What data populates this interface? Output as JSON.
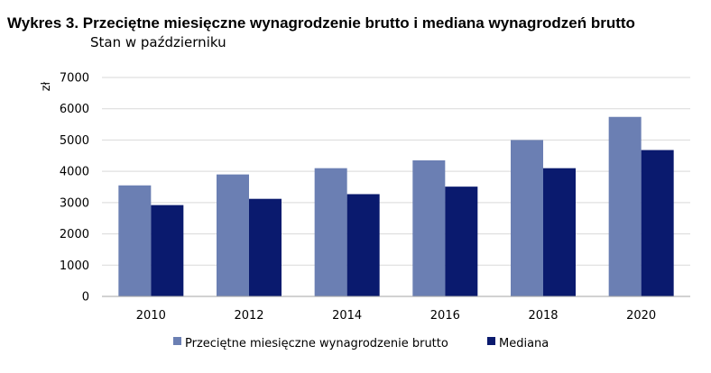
{
  "chart_data": {
    "type": "bar",
    "title": "Wykres 3. Przeciętne miesięczne wynagrodzenie brutto i mediana wynagrodzeń brutto",
    "subtitle": "Stan w październiku",
    "ylabel": "zł",
    "xlabel": "",
    "categories": [
      "2010",
      "2012",
      "2014",
      "2016",
      "2018",
      "2020"
    ],
    "ylim": [
      0,
      7000
    ],
    "yticks": [
      0,
      1000,
      2000,
      3000,
      4000,
      5000,
      6000,
      7000
    ],
    "grid": true,
    "legend_position": "bottom",
    "series": [
      {
        "name": "Przeciętne miesięczne wynagrodzenie brutto",
        "color": "#6b7fb3",
        "values": [
          3550,
          3900,
          4100,
          4350,
          5000,
          5740
        ]
      },
      {
        "name": "Mediana",
        "color": "#0a1a6e",
        "values": [
          2920,
          3120,
          3270,
          3510,
          4100,
          4680
        ]
      }
    ]
  }
}
